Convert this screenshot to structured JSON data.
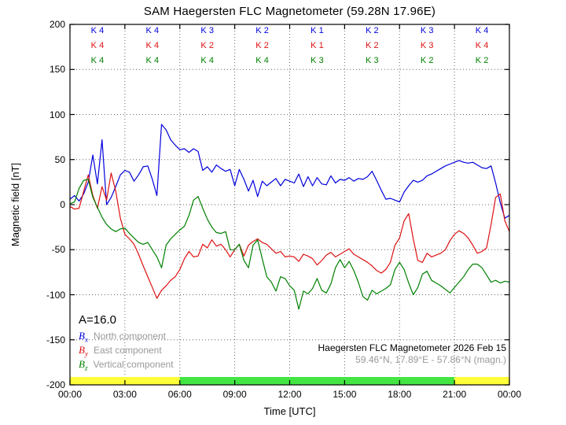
{
  "colors": {
    "bx": "#0000dd",
    "by": "#dd1111",
    "bz": "#008000",
    "bar_yellow": "#ffff3a",
    "bar_green": "#43e543",
    "gray_text": "#999999"
  },
  "annotations": {
    "a_index": "A=16.0",
    "station_line1": "Haegersten FLC Magnetometer 2026 Feb 15",
    "station_line2": "59.46°N, 17.89°E - 57.86°N (magn.)"
  },
  "legend": {
    "items": [
      {
        "symbol": "B",
        "sub": "x",
        "label": "North component",
        "color_key": "bx"
      },
      {
        "symbol": "B",
        "sub": "y",
        "label": "East component",
        "color_key": "by"
      },
      {
        "symbol": "B",
        "sub": "z",
        "label": "Vertical component",
        "color_key": "bz"
      }
    ]
  },
  "chart_data": {
    "type": "line",
    "title": "SAM Haegersten FLC Magnetometer (59.28N 17.96E)",
    "xlabel": "Time [UTC]",
    "ylabel": "Magnetic field [nT]",
    "xlim": [
      0,
      24
    ],
    "ylim": [
      -200,
      200
    ],
    "grid": "dotted",
    "legend_position": "lower-left",
    "x_tick_hours": [
      0,
      3,
      6,
      9,
      12,
      15,
      18,
      21,
      24
    ],
    "x_tick_labels": [
      "00:00",
      "03:00",
      "06:00",
      "09:00",
      "12:00",
      "15:00",
      "18:00",
      "21:00",
      "00:00"
    ],
    "y_tick_values": [
      200,
      150,
      100,
      50,
      0,
      -50,
      -100,
      -150,
      -200
    ],
    "y_tick_labels": [
      "200",
      "150",
      "100",
      "50",
      "0",
      "-50",
      "-100",
      "-150",
      "-200"
    ],
    "sample_interval_hours": 0.25,
    "k_index_rows": [
      {
        "component": "Bx",
        "color_key": "bx",
        "values": [
          "K 4",
          "K 4",
          "K 3",
          "K 2",
          "K 1",
          "K 2",
          "K 3",
          "K 4"
        ]
      },
      {
        "component": "By",
        "color_key": "by",
        "values": [
          "K 4",
          "K 4",
          "K 2",
          "K 2",
          "K 1",
          "K 2",
          "K 3",
          "K 4"
        ]
      },
      {
        "component": "Bz",
        "color_key": "bz",
        "values": [
          "K 4",
          "K 4",
          "K 4",
          "K 4",
          "K 3",
          "K 3",
          "K 2",
          "K 2"
        ]
      }
    ],
    "k_block_center_hours": [
      1.5,
      4.5,
      7.5,
      10.5,
      13.5,
      16.5,
      19.5,
      22.5
    ],
    "activity_bar": {
      "segments": [
        {
          "from_hour": 0,
          "to_hour": 6,
          "color_key": "bar_yellow"
        },
        {
          "from_hour": 6,
          "to_hour": 21,
          "color_key": "bar_green"
        },
        {
          "from_hour": 21,
          "to_hour": 24,
          "color_key": "bar_yellow"
        }
      ]
    },
    "series": [
      {
        "id": "bx",
        "name": "Bx North component",
        "color_key": "bx",
        "values": [
          6,
          10,
          4,
          12,
          25,
          55,
          23,
          72,
          0,
          8,
          20,
          33,
          38,
          36,
          26,
          33,
          42,
          43,
          28,
          10,
          89,
          83,
          72,
          66,
          61,
          62,
          58,
          62,
          59,
          38,
          42,
          36,
          44,
          40,
          37,
          39,
          21,
          39,
          28,
          15,
          27,
          9,
          26,
          21,
          25,
          29,
          21,
          28,
          26,
          24,
          34,
          20,
          31,
          21,
          30,
          23,
          22,
          32,
          24,
          28,
          27,
          30,
          26,
          29,
          28,
          31,
          37,
          27,
          16,
          6,
          7,
          5,
          3,
          14,
          21,
          27,
          25,
          27,
          32,
          34,
          37,
          40,
          43,
          45,
          47,
          49,
          47,
          46,
          47,
          44,
          41,
          40,
          43,
          24,
          2,
          -15,
          -12
        ]
      },
      {
        "id": "by",
        "name": "By East component",
        "color_key": "by",
        "values": [
          -2,
          -5,
          -4,
          15,
          33,
          10,
          -4,
          20,
          5,
          35,
          15,
          -15,
          -33,
          -38,
          -44,
          -55,
          -68,
          -80,
          -92,
          -104,
          -95,
          -90,
          -84,
          -80,
          -72,
          -60,
          -52,
          -58,
          -57,
          -44,
          -48,
          -39,
          -46,
          -44,
          -50,
          -58,
          -50,
          -44,
          -57,
          -45,
          -41,
          -38,
          -42,
          -44,
          -49,
          -54,
          -52,
          -58,
          -57,
          -58,
          -63,
          -55,
          -57,
          -60,
          -67,
          -62,
          -56,
          -53,
          -58,
          -55,
          -52,
          -49,
          -55,
          -58,
          -61,
          -64,
          -68,
          -73,
          -76,
          -72,
          -64,
          -45,
          -37,
          -18,
          -10,
          -38,
          -62,
          -64,
          -54,
          -58,
          -56,
          -54,
          -50,
          -40,
          -33,
          -29,
          -32,
          -37,
          -45,
          -54,
          -52,
          -48,
          -22,
          8,
          12,
          -18,
          -30
        ]
      },
      {
        "id": "bz",
        "name": "Bz Vertical component",
        "color_key": "bz",
        "values": [
          1,
          3,
          18,
          27,
          28,
          8,
          -3,
          -14,
          -22,
          -27,
          -30,
          -27,
          -26,
          -32,
          -37,
          -42,
          -44,
          -42,
          -50,
          -58,
          -70,
          -45,
          -38,
          -33,
          -28,
          -24,
          -12,
          5,
          9,
          -4,
          -16,
          -25,
          -31,
          -32,
          -30,
          -50,
          -50,
          -44,
          -62,
          -70,
          -45,
          -39,
          -60,
          -80,
          -86,
          -96,
          -80,
          -82,
          -90,
          -95,
          -116,
          -96,
          -99,
          -93,
          -82,
          -95,
          -98,
          -88,
          -70,
          -61,
          -70,
          -63,
          -73,
          -86,
          -102,
          -106,
          -95,
          -99,
          -96,
          -93,
          -89,
          -72,
          -64,
          -72,
          -87,
          -100,
          -92,
          -77,
          -74,
          -84,
          -87,
          -90,
          -94,
          -98,
          -92,
          -86,
          -80,
          -72,
          -66,
          -66,
          -70,
          -78,
          -86,
          -84,
          -87,
          -85,
          -86
        ]
      }
    ]
  }
}
